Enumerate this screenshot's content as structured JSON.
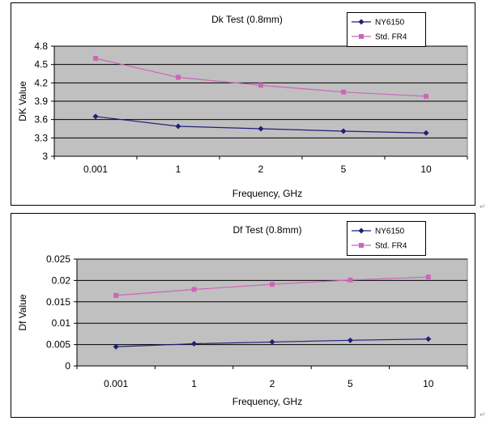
{
  "chart_data": [
    {
      "type": "line",
      "title": "Dk Test (0.8mm)",
      "xlabel": "Frequency, GHz",
      "ylabel": "DK Value",
      "categories": [
        "0.001",
        "1",
        "2",
        "5",
        "10"
      ],
      "ylim": [
        3,
        4.8
      ],
      "yticks": [
        "3",
        "3.3",
        "3.6",
        "3.9",
        "4.2",
        "4.5",
        "4.8"
      ],
      "grid": true,
      "legend_position": "top-right",
      "series": [
        {
          "name": "NY6150",
          "values": [
            3.65,
            3.49,
            3.45,
            3.41,
            3.38
          ],
          "color": "#1f1f7a",
          "marker": "diamond"
        },
        {
          "name": "Std. FR4",
          "values": [
            4.6,
            4.29,
            4.16,
            4.05,
            3.98
          ],
          "color": "#cc66b8",
          "marker": "square"
        }
      ]
    },
    {
      "type": "line",
      "title": "Df Test (0.8mm)",
      "xlabel": "Frequency, GHz",
      "ylabel": "Df Value",
      "categories": [
        "0.001",
        "1",
        "2",
        "5",
        "10"
      ],
      "ylim": [
        0,
        0.025
      ],
      "yticks": [
        "0",
        "0.005",
        "0.01",
        "0.015",
        "0.02",
        "0.025"
      ],
      "grid": true,
      "legend_position": "top-right",
      "series": [
        {
          "name": "NY6150",
          "values": [
            0.0045,
            0.0052,
            0.0056,
            0.006,
            0.0063
          ],
          "color": "#1f1f7a",
          "marker": "diamond"
        },
        {
          "name": "Std. FR4",
          "values": [
            0.0165,
            0.0179,
            0.0191,
            0.0201,
            0.0208
          ],
          "color": "#cc66b8",
          "marker": "square"
        }
      ]
    }
  ],
  "colors": {
    "plot_background": "#c0c0c0",
    "gridline": "#000000",
    "frame": "#000000"
  }
}
